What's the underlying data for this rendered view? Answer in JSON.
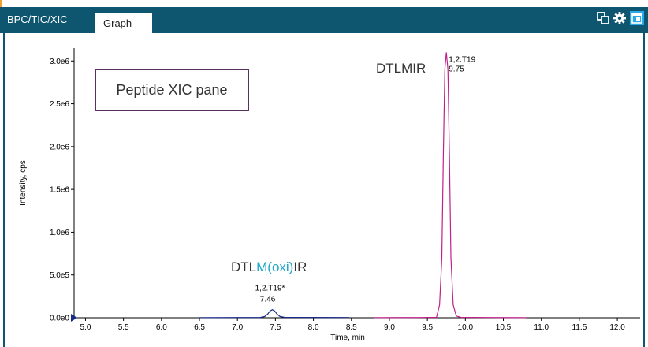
{
  "tabs": {
    "bpc_label": "BPC/TIC/XIC",
    "graph_label": "Graph"
  },
  "toolbar_icons": [
    "copy-icon",
    "gear-icon",
    "window-icon"
  ],
  "callout": {
    "text": "Peptide XIC pane"
  },
  "peptide_labels": {
    "main": "DTLMIR",
    "oxi_prefix": "DTL",
    "oxi_mod": "M(oxi)",
    "oxi_suffix": "IR"
  },
  "chart_data": {
    "type": "line",
    "xlabel": "Time, min",
    "ylabel": "Intensity, cps",
    "xlim": [
      4.85,
      12.3
    ],
    "ylim": [
      0,
      3150000
    ],
    "x_ticks": [
      5.0,
      5.5,
      6.0,
      6.5,
      7.0,
      7.5,
      8.0,
      8.5,
      9.0,
      9.5,
      10.0,
      10.5,
      11.0,
      11.5,
      12.0
    ],
    "x_tick_labels": [
      "5.0",
      "5.5",
      "6.0",
      "6.5",
      "7.0",
      "7.5",
      "8.0",
      "8.5",
      "9.0",
      "9.5",
      "10.0",
      "10.5",
      "11.0",
      "11.5",
      "12.0"
    ],
    "y_ticks": [
      0,
      500000,
      1000000,
      1500000,
      2000000,
      2500000,
      3000000
    ],
    "y_tick_labels": [
      "0.0e0",
      "5.0e5",
      "1.0e6",
      "1.5e6",
      "2.0e6",
      "2.5e6",
      "3.0e6"
    ],
    "grid": false,
    "series": [
      {
        "color": "#1a2a8a",
        "x": [
          6.5,
          7.0,
          7.3,
          7.36,
          7.4,
          7.43,
          7.46,
          7.49,
          7.52,
          7.56,
          7.62,
          8.0,
          8.47
        ],
        "y": [
          2000,
          3000,
          4000,
          15000,
          45000,
          80000,
          95000,
          80000,
          45000,
          15000,
          5000,
          4000,
          3000
        ]
      },
      {
        "color": "#c0208a",
        "x": [
          8.8,
          9.4,
          9.62,
          9.66,
          9.69,
          9.71,
          9.73,
          9.75,
          9.77,
          9.79,
          9.81,
          9.84,
          9.88,
          9.94,
          10.3,
          10.8
        ],
        "y": [
          2000,
          3000,
          5000,
          150000,
          700000,
          1900000,
          2900000,
          3100000,
          2900000,
          1900000,
          700000,
          150000,
          20000,
          5000,
          3000,
          2000
        ]
      }
    ],
    "peak_labels": [
      {
        "series": 0,
        "x": 7.46,
        "y": 95000,
        "id": "1,2.T19*",
        "rt": "7.46"
      },
      {
        "series": 1,
        "x": 9.75,
        "y": 3100000,
        "id": "1,2.T19",
        "rt": "9.75"
      }
    ]
  }
}
